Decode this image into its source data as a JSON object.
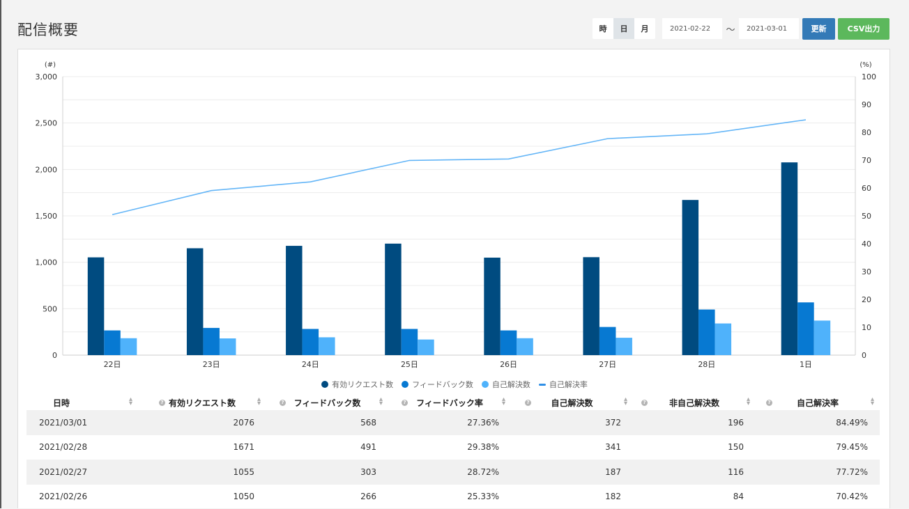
{
  "header": {
    "title": "配信概要"
  },
  "toolbar": {
    "granularity": [
      {
        "label": "時"
      },
      {
        "label": "日"
      },
      {
        "label": "月"
      }
    ],
    "granularity_selected": "日",
    "date_from": "2021-02-22",
    "date_sep": "〜",
    "date_to": "2021-03-01",
    "update_label": "更新",
    "csv_label": "CSV出力"
  },
  "chart_data": {
    "type": "bar",
    "categories": [
      "22日",
      "23日",
      "24日",
      "25日",
      "26日",
      "27日",
      "28日",
      "1日"
    ],
    "series": [
      {
        "name": "有効リクエスト数",
        "kind": "bar",
        "axis": "left",
        "color": "#004b80",
        "values": [
          1053,
          1151,
          1177,
          1201,
          1050,
          1055,
          1671,
          2076
        ]
      },
      {
        "name": "フィードバック数",
        "kind": "bar",
        "axis": "left",
        "color": "#0779d2",
        "values": [
          266,
          293,
          282,
          282,
          266,
          303,
          491,
          568
        ]
      },
      {
        "name": "自己解決数",
        "kind": "bar",
        "axis": "left",
        "color": "#4fb2fb",
        "values": [
          182,
          180,
          192,
          168,
          182,
          187,
          341,
          372
        ]
      },
      {
        "name": "自己解決率",
        "kind": "line",
        "axis": "right",
        "color": "#63b5f7",
        "values": [
          50.43,
          59.07,
          62.2,
          69.9,
          70.42,
          77.72,
          79.45,
          84.49
        ]
      }
    ],
    "left_axis": {
      "unit": "(#)",
      "ylim": [
        0,
        3000
      ],
      "ticks": [
        "0",
        "500",
        "1,000",
        "1,500",
        "2,000",
        "2,500",
        "3,000"
      ]
    },
    "right_axis": {
      "unit": "(%)",
      "ylim": [
        0,
        100
      ],
      "ticks": [
        "0",
        "10",
        "20",
        "30",
        "40",
        "50",
        "60",
        "70",
        "80",
        "90",
        "100"
      ]
    },
    "grid": true,
    "legend_position": "bottom"
  },
  "table": {
    "columns": [
      "日時",
      "有効リクエスト数",
      "フィードバック数",
      "フィードバック率",
      "自己解決数",
      "非自己解決数",
      "自己解決率"
    ],
    "rows": [
      [
        "2021/03/01",
        "2076",
        "568",
        "27.36%",
        "372",
        "196",
        "84.49%"
      ],
      [
        "2021/02/28",
        "1671",
        "491",
        "29.38%",
        "341",
        "150",
        "79.45%"
      ],
      [
        "2021/02/27",
        "1055",
        "303",
        "28.72%",
        "187",
        "116",
        "77.72%"
      ],
      [
        "2021/02/26",
        "1050",
        "266",
        "25.33%",
        "182",
        "84",
        "70.42%"
      ]
    ]
  },
  "icons": {
    "sort": "sort-icon",
    "info": "info-icon"
  }
}
